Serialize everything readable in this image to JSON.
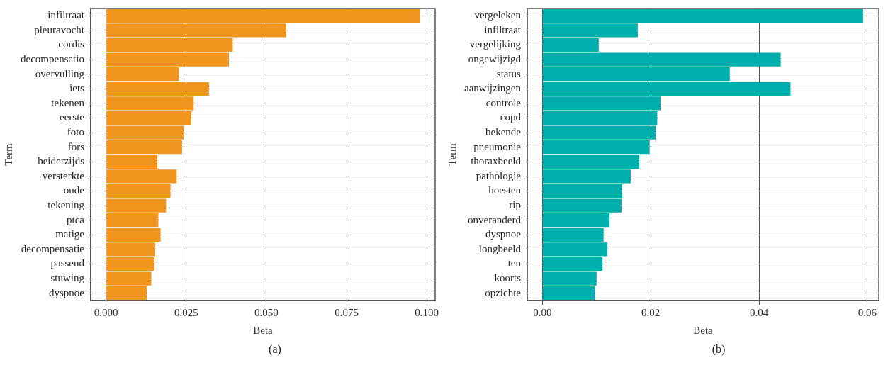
{
  "chart_data": [
    {
      "type": "bar",
      "orientation": "horizontal",
      "xlabel": "Beta",
      "ylabel": "Term",
      "annotations": [
        "(a)"
      ],
      "grid": true,
      "legend": false,
      "categories": [
        "infiltraat",
        "pleuravocht",
        "cordis",
        "decompensatio",
        "overvulling",
        "iets",
        "tekenen",
        "eerste",
        "foto",
        "fors",
        "beiderzijds",
        "versterkte",
        "oude",
        "tekening",
        "ptca",
        "matige",
        "decompensatie",
        "passend",
        "stuwing",
        "dyspnoe"
      ],
      "series": [
        {
          "color": "#f0951e",
          "values": [
            0.0978,
            0.0562,
            0.0395,
            0.0383,
            0.0227,
            0.0321,
            0.0273,
            0.0266,
            0.0242,
            0.0237,
            0.016,
            0.022,
            0.0201,
            0.0187,
            0.0163,
            0.017,
            0.0153,
            0.0151,
            0.0141,
            0.0127
          ]
        }
      ],
      "xlim": [
        -0.0048,
        0.1026
      ],
      "xticks": [
        {
          "value": 0,
          "label": "0.000"
        },
        {
          "value": 0.025,
          "label": "0.025"
        },
        {
          "value": 0.05,
          "label": "0.050"
        },
        {
          "value": 0.075,
          "label": "0.075"
        },
        {
          "value": 0.1,
          "label": "0.100"
        }
      ]
    },
    {
      "type": "bar",
      "orientation": "horizontal",
      "xlabel": "Beta",
      "ylabel": "Term",
      "annotations": [
        "(b)"
      ],
      "grid": true,
      "legend": false,
      "categories": [
        "vergeleken",
        "infiltraat",
        "vergelijking",
        "ongewijzigd",
        "status",
        "aanwijzingen",
        "controle",
        "copd",
        "bekende",
        "pneumonie",
        "thoraxbeeld",
        "pathologie",
        "hoesten",
        "rip",
        "onveranderd",
        "dyspnoe",
        "longbeeld",
        "ten",
        "koorts",
        "opzichte"
      ],
      "series": [
        {
          "color": "#00aeae",
          "values": [
            0.0592,
            0.0176,
            0.0104,
            0.044,
            0.0346,
            0.0458,
            0.0218,
            0.0212,
            0.0209,
            0.0198,
            0.0179,
            0.0163,
            0.0147,
            0.0146,
            0.0124,
            0.0113,
            0.012,
            0.0111,
            0.01,
            0.0097
          ]
        }
      ],
      "xlim": [
        -0.0028,
        0.0621
      ],
      "xticks": [
        {
          "value": 0,
          "label": "0.00"
        },
        {
          "value": 0.02,
          "label": "0.02"
        },
        {
          "value": 0.04,
          "label": "0.04"
        },
        {
          "value": 0.06,
          "label": "0.06"
        }
      ]
    }
  ]
}
